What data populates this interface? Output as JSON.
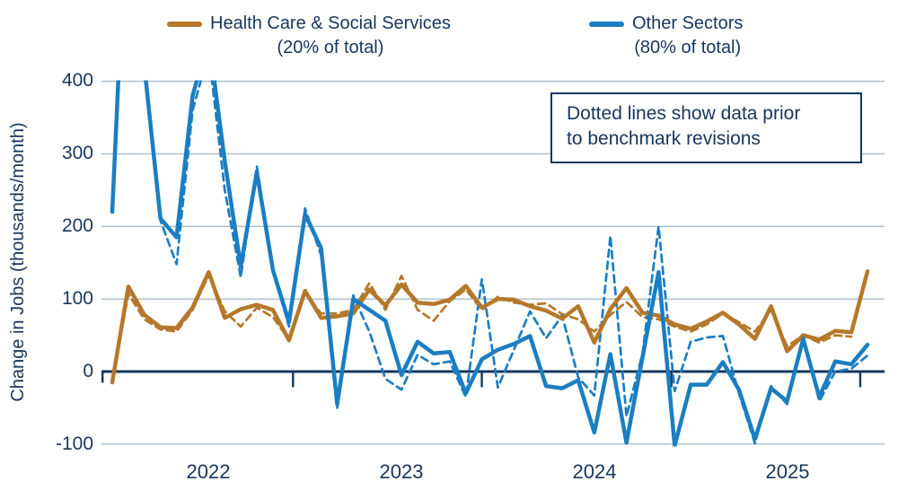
{
  "legend": {
    "items": [
      {
        "id": "health-care",
        "label": "Health Care & Social Services",
        "sublabel": "(20% of total)",
        "color": "#b5782a"
      },
      {
        "id": "other-sectors",
        "label": "Other Sectors",
        "sublabel": "(80% of total)",
        "color": "#1b7ec2"
      }
    ]
  },
  "annotation": {
    "line1": "Dotted lines show data prior",
    "line2": "to benchmark revisions"
  },
  "y_axis": {
    "title": "Change in Jobs (thousands/month)",
    "tick_labels": [
      "400",
      "300",
      "200",
      "100",
      "0",
      "-100"
    ]
  },
  "x_axis": {
    "year_labels": [
      "2022",
      "2023",
      "2024",
      "2025"
    ]
  },
  "colors": {
    "health_care": "#b5782a",
    "other_sectors": "#1b7ec2",
    "axis_navy": "#17365c",
    "gridline": "#a9bccd"
  },
  "chart_data": {
    "type": "line",
    "x": [
      "2021-07",
      "2021-08",
      "2021-09",
      "2021-10",
      "2021-11",
      "2021-12",
      "2022-01",
      "2022-02",
      "2022-03",
      "2022-04",
      "2022-05",
      "2022-06",
      "2022-07",
      "2022-08",
      "2022-09",
      "2022-10",
      "2022-11",
      "2022-12",
      "2023-01",
      "2023-02",
      "2023-03",
      "2023-04",
      "2023-05",
      "2023-06",
      "2023-07",
      "2023-08",
      "2023-09",
      "2023-10",
      "2023-11",
      "2023-12",
      "2024-01",
      "2024-02",
      "2024-03",
      "2024-04",
      "2024-05",
      "2024-06",
      "2024-07",
      "2024-08",
      "2024-09",
      "2024-10",
      "2024-11",
      "2024-12",
      "2025-01",
      "2025-02",
      "2025-03",
      "2025-04",
      "2025-05",
      "2025-06"
    ],
    "series": [
      {
        "name": "Health Care & Social Services (revised)",
        "style": "solid",
        "color": "#b5782a",
        "values": [
          -15,
          117,
          78,
          61,
          60,
          88,
          137,
          74,
          86,
          92,
          85,
          43,
          111,
          74,
          76,
          80,
          113,
          91,
          120,
          95,
          93,
          99,
          118,
          88,
          100,
          99,
          90,
          84,
          73,
          90,
          40,
          86,
          115,
          81,
          77,
          65,
          59,
          69,
          81,
          65,
          45,
          90,
          28,
          50,
          44,
          56,
          54,
          138
        ]
      },
      {
        "name": "Health Care & Social Services (prior to benchmark revisions)",
        "style": "dashed",
        "color": "#b5782a",
        "values": [
          -15,
          107,
          72,
          58,
          55,
          85,
          133,
          83,
          62,
          88,
          75,
          44,
          108,
          80,
          80,
          85,
          122,
          85,
          132,
          85,
          70,
          97,
          113,
          85,
          103,
          95,
          92,
          94,
          79,
          72,
          55,
          78,
          96,
          75,
          72,
          62,
          55,
          65,
          80,
          68,
          55,
          85,
          35,
          50,
          40,
          50,
          48,
          null
        ]
      },
      {
        "name": "Other Sectors (revised)",
        "style": "solid",
        "color": "#1b7ec2",
        "values": [
          220,
          700,
          420,
          211,
          185,
          380,
          460,
          290,
          145,
          275,
          140,
          68,
          217,
          170,
          -45,
          100,
          85,
          70,
          -5,
          41,
          25,
          27,
          -30,
          17,
          30,
          38,
          49,
          -20,
          -23,
          -12,
          -84,
          24,
          -98,
          20,
          137,
          -102,
          -18,
          -18,
          13,
          -25,
          -93,
          -23,
          -41,
          45,
          -35,
          14,
          10,
          37
        ]
      },
      {
        "name": "Other Sectors (prior to benchmark revisions)",
        "style": "dashed",
        "color": "#1b7ec2",
        "values": [
          220,
          700,
          430,
          208,
          148,
          360,
          440,
          250,
          130,
          283,
          140,
          62,
          225,
          160,
          -50,
          105,
          55,
          -10,
          -25,
          23,
          10,
          14,
          -35,
          127,
          -22,
          30,
          83,
          46,
          77,
          -8,
          -33,
          187,
          -62,
          25,
          200,
          -27,
          41,
          47,
          49,
          -30,
          -99,
          -20,
          -45,
          49,
          -41,
          0,
          4,
          22
        ]
      }
    ],
    "ylabel": "Change in Jobs (thousands/month)",
    "ylim": [
      -100,
      400
    ],
    "yticks": [
      400,
      300,
      200,
      100,
      0,
      -100
    ],
    "clip_note": "values above 400 are clipped at the top gridline",
    "legend_position": "top",
    "grid": "horizontal"
  }
}
